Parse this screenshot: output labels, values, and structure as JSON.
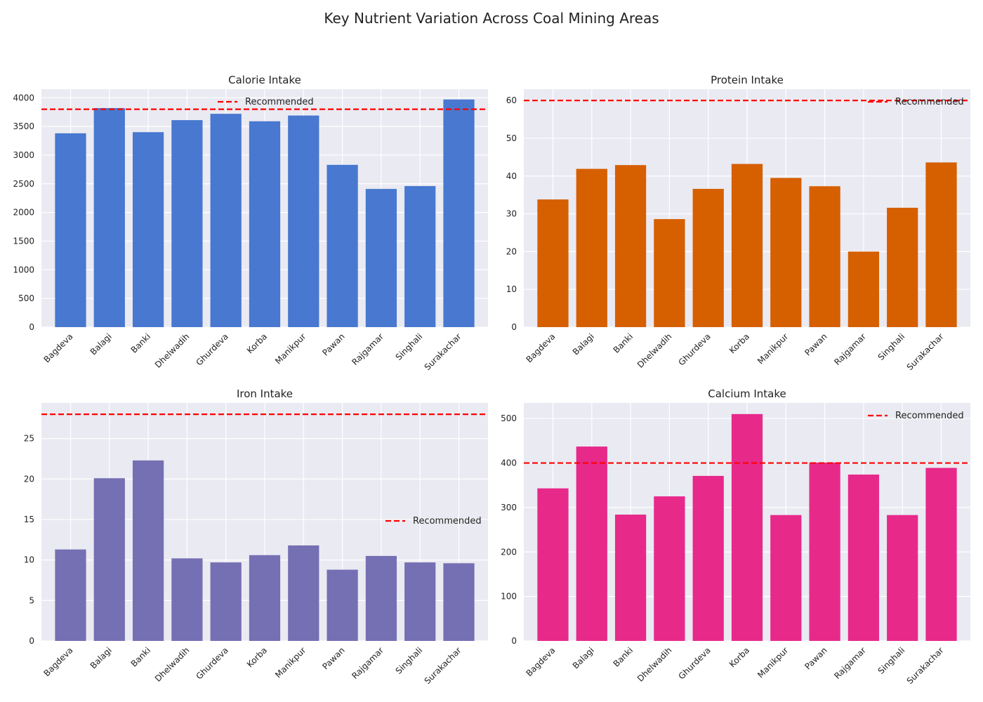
{
  "figure": {
    "title": "Key Nutrient Variation Across Coal Mining Areas"
  },
  "chart_data": [
    {
      "type": "bar",
      "title": "Calorie Intake",
      "categories": [
        "Bagdeva",
        "Balagi",
        "Banki",
        "Dhelwadih",
        "Ghurdeva",
        "Korba",
        "Manikpur",
        "Pawan",
        "Rajgamar",
        "Singhali",
        "Surakachar"
      ],
      "values": [
        3380,
        3820,
        3400,
        3610,
        3720,
        3590,
        3690,
        2830,
        2410,
        2460,
        3970
      ],
      "color": "#4878d0",
      "reference_line": {
        "label": "Recommended",
        "value": 3800,
        "color": "#ff0000"
      },
      "ylim": [
        0,
        4150
      ],
      "yticks": [
        0,
        500,
        1000,
        1500,
        2000,
        2500,
        3000,
        3500,
        4000
      ],
      "legend": "upper center",
      "grid": true
    },
    {
      "type": "bar",
      "title": "Protein Intake",
      "categories": [
        "Bagdeva",
        "Balagi",
        "Banki",
        "Dhelwadih",
        "Ghurdeva",
        "Korba",
        "Manikpur",
        "Pawan",
        "Rajgamar",
        "Singhali",
        "Surakachar"
      ],
      "values": [
        33.8,
        41.9,
        42.9,
        28.6,
        36.6,
        43.2,
        39.5,
        37.3,
        20.0,
        31.6,
        43.6
      ],
      "color": "#d65f00",
      "reference_line": {
        "label": "Recommended",
        "value": 60,
        "color": "#ff0000"
      },
      "ylim": [
        0,
        63
      ],
      "yticks": [
        0,
        10,
        20,
        30,
        40,
        50,
        60
      ],
      "legend": "top-right",
      "grid": true
    },
    {
      "type": "bar",
      "title": "Iron Intake",
      "categories": [
        "Bagdeva",
        "Balagi",
        "Banki",
        "Dhelwadih",
        "Ghurdeva",
        "Korba",
        "Manikpur",
        "Pawan",
        "Rajgamar",
        "Singhali",
        "Surakachar"
      ],
      "values": [
        11.3,
        20.1,
        22.3,
        10.2,
        9.7,
        10.6,
        11.8,
        8.8,
        10.5,
        9.7,
        9.6
      ],
      "color": "#7570b3",
      "reference_line": {
        "label": "Recommended",
        "value": 28,
        "color": "#ff0000"
      },
      "ylim": [
        0,
        29.4
      ],
      "yticks": [
        0,
        5,
        10,
        15,
        20,
        25
      ],
      "legend": "center-right",
      "grid": true
    },
    {
      "type": "bar",
      "title": "Calcium Intake",
      "categories": [
        "Bagdeva",
        "Balagi",
        "Banki",
        "Dhelwadih",
        "Ghurdeva",
        "Korba",
        "Manikpur",
        "Pawan",
        "Rajgamar",
        "Singhali",
        "Surakachar"
      ],
      "values": [
        343,
        437,
        284,
        325,
        371,
        510,
        283,
        401,
        374,
        283,
        389
      ],
      "color": "#e7298a",
      "reference_line": {
        "label": "Recommended",
        "value": 400,
        "color": "#ff0000"
      },
      "ylim": [
        0,
        535
      ],
      "yticks": [
        0,
        100,
        200,
        300,
        400,
        500
      ],
      "legend": "top-right",
      "grid": true
    }
  ]
}
